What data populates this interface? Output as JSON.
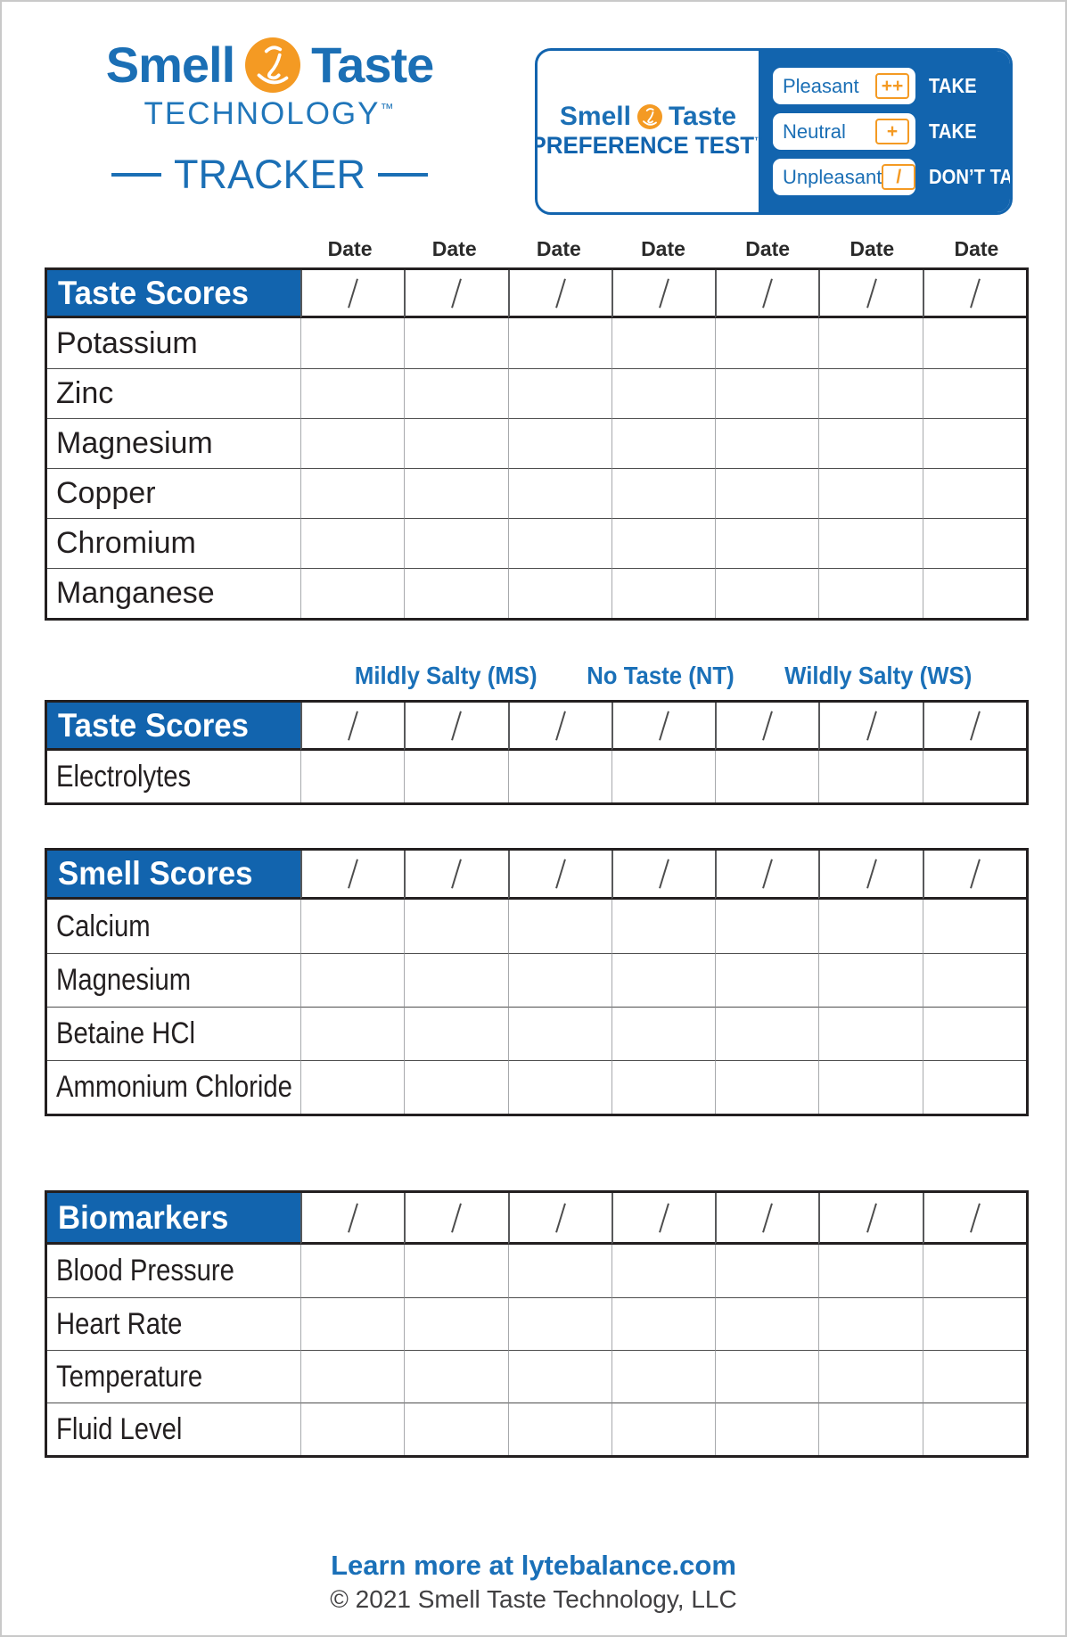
{
  "logo": {
    "smell": "Smell",
    "taste": "Taste",
    "technology": "TECHNOLOGY",
    "technology_tm": "™",
    "tracker": "TRACKER"
  },
  "preference_card": {
    "brand_smell": "Smell",
    "brand_taste": "Taste",
    "title": "PREFERENCE TEST",
    "title_tm": "™",
    "options": [
      {
        "label": "Pleasant",
        "symbol": "++",
        "action": "TAKE"
      },
      {
        "label": "Neutral",
        "symbol": "+",
        "action": "TAKE"
      },
      {
        "label": "Unpleasant",
        "symbol": "/",
        "action": "DON’T TAKE"
      }
    ]
  },
  "date_labels": [
    "Date",
    "Date",
    "Date",
    "Date",
    "Date",
    "Date",
    "Date"
  ],
  "score_columns": 7,
  "tables": [
    {
      "header": "Taste Scores",
      "rows": [
        "Potassium",
        "Zinc",
        "Magnesium",
        "Copper",
        "Chromium",
        "Manganese"
      ]
    },
    {
      "header": "Taste Scores",
      "caption_segments": [
        "Mildly Salty (MS)",
        "No Taste (NT)",
        "Wildly Salty (WS)"
      ],
      "rows": [
        "Electrolytes"
      ]
    },
    {
      "header": "Smell Scores",
      "rows": [
        "Calcium",
        "Magnesium",
        "Betaine HCl",
        "Ammonium Chloride"
      ]
    },
    {
      "header": "Biomarkers",
      "rows": [
        "Blood Pressure",
        "Heart Rate",
        "Temperature",
        "Fluid Level"
      ]
    }
  ],
  "footer": {
    "link": "Learn more at lytebalance.com",
    "copyright": "© 2021 Smell Taste Technology, LLC"
  },
  "colors": {
    "brand_blue": "#1b6fb5",
    "header_blue": "#1264ae",
    "orange": "#f49a23",
    "border_dark": "#231f20",
    "grid_gray": "#a7a9ac",
    "row_line": "#4d4d4d",
    "text_dark": "#231f20",
    "copyright_gray": "#414042"
  }
}
